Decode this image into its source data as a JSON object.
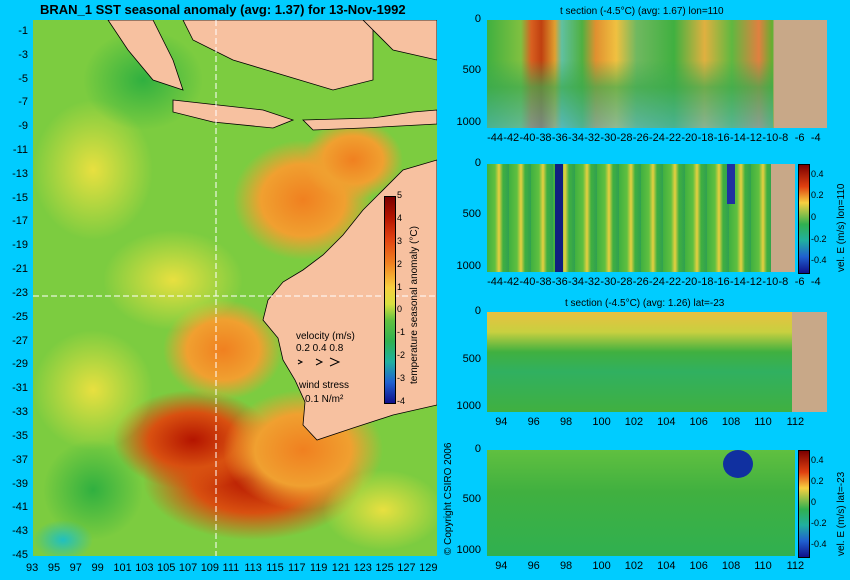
{
  "chart_data": [
    {
      "type": "heatmap",
      "title": "BRAN_1 SST seasonal anomaly (avg: 1.37) for 13-Nov-1992",
      "x_ticks": [
        "93",
        "95",
        "97",
        "99",
        "101",
        "103",
        "105",
        "107",
        "109",
        "111",
        "113",
        "115",
        "117",
        "119",
        "121",
        "123",
        "125",
        "127",
        "129"
      ],
      "y_ticks": [
        "-1",
        "-3",
        "-5",
        "-7",
        "-9",
        "-11",
        "-13",
        "-15",
        "-17",
        "-19",
        "-21",
        "-23",
        "-25",
        "-27",
        "-29",
        "-31",
        "-33",
        "-35",
        "-37",
        "-39",
        "-41",
        "-43",
        "-45"
      ],
      "xlim": [
        93,
        130
      ],
      "ylim": [
        -45,
        0
      ],
      "colorbar": {
        "label": "temperature seasonal anomaly (°C)",
        "ticks": [
          "5",
          "4",
          "3",
          "2",
          "1",
          "0",
          "-1",
          "-2",
          "-3",
          "-4"
        ],
        "range": [
          -4,
          5
        ]
      },
      "legend": {
        "velocity_title": "velocity (m/s)",
        "velocity_scale": "0.2 0.4 0.8",
        "wind_title": "wind stress",
        "wind_scale": "0.1 N/m²"
      }
    },
    {
      "type": "heatmap",
      "title": "t section (-4.5°C) (avg: 1.67) lon=110",
      "x_ticks": [
        "-44",
        "-42",
        "-40",
        "-38",
        "-36",
        "-34",
        "-32",
        "-30",
        "-28",
        "-26",
        "-24",
        "-22",
        "-20",
        "-18",
        "-16",
        "-14",
        "-12",
        "-10",
        "-8",
        "-6",
        "-4"
      ],
      "y_ticks": [
        "0",
        "500",
        "1000"
      ],
      "xlim": [
        -45,
        -3
      ],
      "ylim": [
        1050,
        0
      ]
    },
    {
      "type": "heatmap",
      "title": "",
      "x_ticks": [
        "-44",
        "-42",
        "-40",
        "-38",
        "-36",
        "-34",
        "-32",
        "-30",
        "-28",
        "-26",
        "-24",
        "-22",
        "-20",
        "-18",
        "-16",
        "-14",
        "-12",
        "-10",
        "-8",
        "-6",
        "-4"
      ],
      "y_ticks": [
        "0",
        "500",
        "1000"
      ],
      "xlim": [
        -45,
        -3
      ],
      "ylim": [
        1050,
        0
      ],
      "colorbar": {
        "label": "vel. E (m/s) lon=110",
        "ticks": [
          "0.4",
          "0.2",
          "0",
          "-0.2",
          "-0.4"
        ],
        "range": [
          -0.5,
          0.5
        ]
      }
    },
    {
      "type": "heatmap",
      "title": "t section (-4.5°C) (avg: 1.26) lat=-23",
      "x_ticks": [
        "94",
        "96",
        "98",
        "100",
        "102",
        "104",
        "106",
        "108",
        "110",
        "112"
      ],
      "y_ticks": [
        "0",
        "500",
        "1000"
      ],
      "xlim": [
        93,
        114
      ],
      "ylim": [
        1050,
        0
      ]
    },
    {
      "type": "heatmap",
      "title": "",
      "x_ticks": [
        "94",
        "96",
        "98",
        "100",
        "102",
        "104",
        "106",
        "108",
        "110",
        "112"
      ],
      "y_ticks": [
        "0",
        "500",
        "1000"
      ],
      "xlim": [
        93,
        114
      ],
      "ylim": [
        1050,
        0
      ],
      "colorbar": {
        "label": "vel. E (m/s) lat=-23",
        "ticks": [
          "0.4",
          "0.2",
          "0",
          "-0.2",
          "-0.4"
        ],
        "range": [
          -0.5,
          0.5
        ]
      }
    }
  ],
  "copyright": "© Copyright CSIRO 2006",
  "colors": {
    "background": "#00ccff",
    "land": "#f7c1a0",
    "section_land": "#c8a888",
    "marker_lines": "#ffffff"
  }
}
